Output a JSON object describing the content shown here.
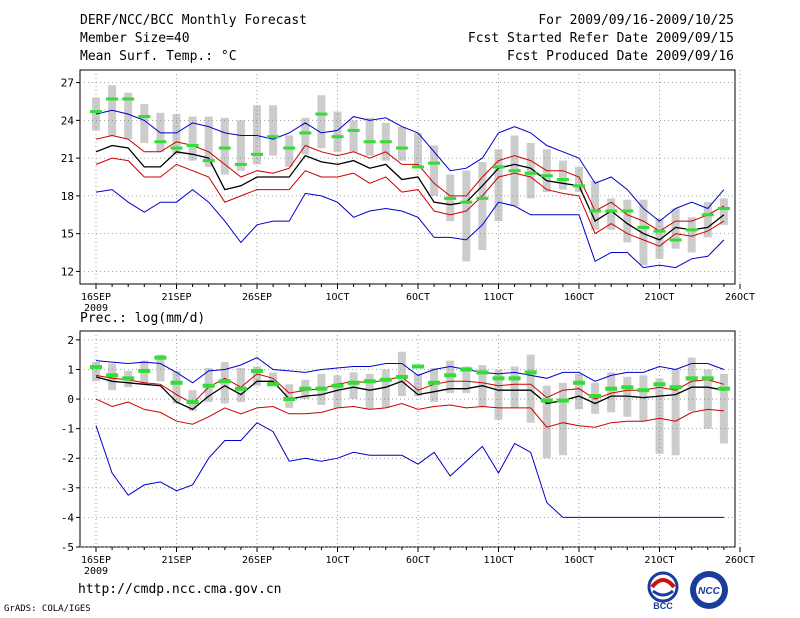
{
  "header": {
    "title": "DERF/NCC/BCC Monthly Forecast",
    "member_size": "Member Size=40",
    "variable": "Mean Surf. Temp.: °C",
    "period": "For 2009/09/16-2009/10/25",
    "started": "Fcst Started Refer Date 2009/09/15",
    "produced": "Fcst Produced Date 2009/09/16"
  },
  "footer": {
    "url": "http://cmdp.ncc.cma.gov.cn",
    "credit": "GrADS: COLA/IGES",
    "logo_left_text": "BCC",
    "logo_right_text": "NCC"
  },
  "colors": {
    "max_min": "#0000cc",
    "sd": "#cc0000",
    "mean": "#000000",
    "obs": "#33dd33",
    "box": "#cccccc"
  },
  "chart_data": [
    {
      "type": "line",
      "title": "Mean Surf. Temp.: °C",
      "x_tick_labels": [
        "16SEP",
        "21SEP",
        "26SEP",
        "1OCT",
        "6OCT",
        "11OCT",
        "16OCT",
        "21OCT",
        "26OCT"
      ],
      "x_tick_days": [
        0,
        5,
        10,
        15,
        20,
        25,
        30,
        35,
        40
      ],
      "x_year_label": "2009",
      "ylim": [
        11,
        28
      ],
      "y_ticks": [
        12,
        15,
        18,
        21,
        24,
        27
      ],
      "days": [
        0,
        1,
        2,
        3,
        4,
        5,
        6,
        7,
        8,
        9,
        10,
        11,
        12,
        13,
        14,
        15,
        16,
        17,
        18,
        19,
        20,
        21,
        22,
        23,
        24,
        25,
        26,
        27,
        28,
        29,
        30,
        31,
        32,
        33,
        34,
        35,
        36,
        37,
        38,
        39
      ],
      "series": [
        {
          "name": "max",
          "values": [
            24.5,
            24.8,
            24.5,
            24.0,
            23.0,
            23.0,
            23.8,
            23.5,
            23.0,
            22.8,
            22.8,
            22.5,
            23.0,
            23.8,
            23.0,
            23.2,
            24.3,
            24.0,
            24.2,
            23.5,
            23.0,
            21.5,
            20.0,
            20.2,
            21.0,
            23.0,
            23.5,
            23.0,
            22.0,
            21.5,
            21.0,
            19.0,
            19.5,
            18.5,
            17.0,
            16.0,
            17.0,
            17.5,
            17.0,
            18.5
          ]
        },
        {
          "name": "plus_sd",
          "values": [
            22.5,
            22.8,
            22.5,
            21.5,
            21.5,
            22.3,
            22.0,
            21.5,
            20.5,
            19.5,
            20.0,
            19.8,
            20.2,
            22.0,
            21.5,
            21.2,
            21.5,
            21.0,
            21.5,
            20.5,
            20.5,
            19.0,
            18.0,
            18.0,
            19.5,
            20.8,
            21.2,
            20.8,
            20.0,
            20.0,
            19.5,
            16.8,
            17.5,
            16.5,
            16.0,
            15.2,
            16.0,
            16.0,
            16.5,
            17.2
          ]
        },
        {
          "name": "mean",
          "values": [
            21.5,
            22.0,
            21.8,
            20.3,
            20.3,
            21.5,
            21.3,
            21.0,
            18.5,
            18.8,
            19.5,
            19.5,
            19.5,
            21.2,
            20.7,
            20.5,
            20.8,
            20.2,
            20.5,
            19.3,
            19.5,
            17.5,
            17.3,
            17.5,
            18.8,
            20.2,
            20.5,
            20.2,
            19.2,
            19.0,
            18.8,
            16.0,
            16.8,
            15.8,
            15.0,
            14.5,
            15.5,
            15.3,
            15.5,
            16.5
          ]
        },
        {
          "name": "minus_sd",
          "values": [
            20.5,
            21.0,
            20.8,
            19.5,
            19.5,
            20.5,
            20.0,
            19.5,
            17.5,
            18.0,
            18.5,
            18.5,
            18.5,
            20.0,
            19.5,
            19.5,
            19.8,
            19.0,
            19.5,
            18.3,
            18.5,
            16.8,
            16.5,
            16.8,
            18.0,
            19.5,
            19.8,
            19.5,
            18.5,
            18.2,
            18.0,
            15.0,
            15.8,
            15.0,
            14.5,
            14.0,
            15.0,
            14.8,
            15.2,
            16.0
          ]
        },
        {
          "name": "min",
          "values": [
            18.3,
            18.5,
            17.5,
            16.7,
            17.5,
            17.5,
            18.5,
            17.5,
            16.0,
            14.3,
            15.7,
            16.0,
            16.0,
            18.2,
            18.0,
            17.5,
            16.3,
            16.8,
            17.0,
            16.8,
            16.3,
            14.7,
            14.7,
            14.5,
            15.7,
            17.5,
            17.2,
            16.5,
            16.5,
            16.5,
            16.5,
            12.8,
            13.5,
            13.5,
            12.3,
            12.5,
            12.3,
            13.0,
            13.2,
            14.5
          ]
        },
        {
          "name": "obs",
          "values": [
            24.7,
            25.7,
            25.7,
            24.3,
            22.3,
            21.8,
            22.0,
            20.8,
            21.8,
            20.5,
            21.3,
            22.7,
            21.8,
            23.0,
            24.5,
            22.7,
            23.2,
            22.3,
            22.3,
            21.8,
            20.3,
            20.6,
            17.8,
            17.5,
            17.8,
            20.3,
            20.0,
            19.8,
            19.6,
            19.3,
            18.8,
            16.8,
            16.8,
            16.8,
            15.5,
            15.2,
            14.5,
            15.3,
            16.5,
            17.0
          ]
        },
        {
          "name": "box_top",
          "values": [
            25.8,
            26.8,
            26.2,
            25.3,
            24.6,
            24.5,
            24.3,
            24.3,
            24.2,
            24.0,
            25.2,
            25.2,
            22.8,
            24.2,
            26.0,
            24.7,
            24.0,
            24.2,
            23.8,
            23.5,
            23.0,
            22.0,
            19.7,
            20.0,
            20.7,
            21.7,
            22.8,
            22.2,
            21.7,
            20.8,
            20.3,
            19.2,
            17.8,
            17.7,
            17.7,
            16.2,
            17.0,
            16.3,
            17.5,
            17.8
          ]
        },
        {
          "name": "box_bottom",
          "values": [
            23.2,
            22.8,
            22.5,
            22.2,
            21.5,
            21.3,
            20.8,
            20.3,
            19.7,
            20.0,
            20.5,
            21.2,
            20.3,
            21.3,
            21.8,
            21.5,
            21.5,
            21.2,
            20.8,
            20.8,
            20.2,
            18.0,
            16.0,
            12.8,
            13.7,
            16.0,
            17.2,
            17.8,
            18.3,
            18.5,
            18.3,
            15.3,
            15.3,
            14.3,
            12.5,
            13.0,
            13.8,
            13.5,
            14.7,
            15.7
          ]
        }
      ]
    },
    {
      "type": "line",
      "title": "Prec.: log(mm/d)",
      "x_tick_labels": [
        "16SEP",
        "21SEP",
        "26SEP",
        "1OCT",
        "6OCT",
        "11OCT",
        "16OCT",
        "21OCT",
        "26OCT"
      ],
      "x_tick_days": [
        0,
        5,
        10,
        15,
        20,
        25,
        30,
        35,
        40
      ],
      "x_year_label": "2009",
      "ylim": [
        -5,
        2.3
      ],
      "y_ticks": [
        -5,
        -4,
        -3,
        -2,
        -1,
        0,
        1,
        2
      ],
      "days": [
        0,
        1,
        2,
        3,
        4,
        5,
        6,
        7,
        8,
        9,
        10,
        11,
        12,
        13,
        14,
        15,
        16,
        17,
        18,
        19,
        20,
        21,
        22,
        23,
        24,
        25,
        26,
        27,
        28,
        29,
        30,
        31,
        32,
        33,
        34,
        35,
        36,
        37,
        38,
        39
      ],
      "series": [
        {
          "name": "max",
          "values": [
            1.3,
            1.25,
            1.2,
            1.25,
            1.2,
            0.9,
            0.55,
            0.95,
            1.0,
            1.15,
            1.4,
            1.0,
            0.95,
            0.9,
            1.0,
            1.05,
            1.1,
            1.1,
            1.2,
            1.2,
            0.8,
            1.0,
            1.1,
            1.0,
            0.9,
            0.85,
            0.9,
            0.8,
            0.7,
            0.9,
            0.9,
            0.6,
            0.8,
            0.9,
            0.9,
            1.1,
            1.0,
            1.2,
            1.2,
            1.0
          ]
        },
        {
          "name": "plus_sd",
          "values": [
            0.8,
            0.7,
            0.65,
            0.55,
            0.5,
            0.15,
            -0.15,
            0.4,
            0.7,
            0.4,
            0.85,
            0.7,
            0.2,
            0.3,
            0.35,
            0.5,
            0.6,
            0.55,
            0.65,
            0.75,
            0.3,
            0.5,
            0.6,
            0.6,
            0.55,
            0.45,
            0.5,
            0.5,
            0.05,
            0.3,
            0.35,
            0.0,
            0.2,
            0.3,
            0.3,
            0.4,
            0.3,
            0.6,
            0.65,
            0.5
          ]
        },
        {
          "name": "mean",
          "values": [
            0.75,
            0.6,
            0.55,
            0.5,
            0.45,
            -0.1,
            -0.35,
            0.1,
            0.45,
            0.15,
            0.6,
            0.6,
            0.0,
            0.1,
            0.15,
            0.3,
            0.4,
            0.3,
            0.4,
            0.6,
            0.15,
            0.25,
            0.35,
            0.35,
            0.45,
            0.3,
            0.3,
            0.3,
            -0.15,
            -0.05,
            0.1,
            -0.15,
            0.1,
            0.1,
            0.05,
            0.1,
            0.15,
            0.4,
            0.4,
            0.3
          ]
        },
        {
          "name": "minus_sd",
          "values": [
            0.0,
            -0.25,
            -0.1,
            -0.35,
            -0.45,
            -0.75,
            -0.85,
            -0.6,
            -0.3,
            -0.5,
            -0.3,
            -0.25,
            -0.5,
            -0.5,
            -0.45,
            -0.3,
            -0.25,
            -0.35,
            -0.3,
            -0.15,
            -0.35,
            -0.25,
            -0.2,
            -0.3,
            -0.25,
            -0.3,
            -0.3,
            -0.3,
            -0.95,
            -0.8,
            -0.9,
            -0.95,
            -0.8,
            -0.75,
            -0.75,
            -0.65,
            -0.75,
            -0.45,
            -0.35,
            -0.4
          ]
        },
        {
          "name": "min",
          "values": [
            -0.9,
            -2.5,
            -3.25,
            -2.9,
            -2.8,
            -3.1,
            -2.9,
            -2.0,
            -1.4,
            -1.4,
            -0.8,
            -1.1,
            -2.1,
            -2.0,
            -2.1,
            -2.0,
            -1.8,
            -1.9,
            -1.9,
            -1.9,
            -2.2,
            -1.8,
            -2.6,
            -2.1,
            -1.6,
            -2.5,
            -1.5,
            -1.8,
            -3.5,
            -4.0,
            -4.0,
            -4.0,
            -4.0,
            -4.0,
            -4.0,
            -4.0,
            -4.0,
            -4.0,
            -4.0,
            -4.0
          ]
        },
        {
          "name": "obs",
          "values": [
            1.08,
            0.8,
            0.7,
            0.95,
            1.4,
            0.55,
            -0.1,
            0.45,
            0.6,
            0.35,
            0.95,
            0.5,
            0.0,
            0.35,
            0.35,
            0.45,
            0.55,
            0.6,
            0.65,
            0.75,
            1.1,
            0.55,
            0.8,
            1.0,
            0.9,
            0.7,
            0.7,
            0.9,
            -0.05,
            -0.05,
            0.55,
            0.1,
            0.35,
            0.4,
            0.3,
            0.5,
            0.4,
            0.7,
            0.7,
            0.35
          ]
        },
        {
          "name": "box_top",
          "values": [
            1.25,
            1.2,
            0.95,
            1.3,
            1.5,
            0.95,
            0.3,
            1.05,
            1.25,
            1.05,
            1.1,
            0.9,
            0.5,
            0.65,
            0.85,
            0.8,
            0.9,
            0.85,
            1.0,
            1.6,
            0.85,
            1.05,
            1.3,
            1.1,
            1.15,
            1.0,
            1.1,
            1.5,
            0.45,
            0.55,
            0.85,
            0.55,
            0.9,
            0.75,
            0.8,
            0.7,
            1.0,
            1.4,
            1.0,
            0.85
          ]
        },
        {
          "name": "box_bottom",
          "values": [
            0.6,
            0.3,
            0.4,
            0.5,
            0.6,
            -0.15,
            -0.4,
            -0.1,
            -0.15,
            -0.1,
            0.45,
            0.5,
            -0.3,
            0.0,
            -0.2,
            -0.3,
            0.0,
            -0.35,
            -0.3,
            0.1,
            0.1,
            -0.1,
            0.2,
            0.2,
            -0.25,
            -0.7,
            -0.3,
            -0.8,
            -2.0,
            -1.9,
            -0.35,
            -0.5,
            -0.45,
            -0.6,
            -0.75,
            -1.85,
            -1.9,
            -0.4,
            -1.0,
            -1.5
          ]
        }
      ]
    }
  ]
}
